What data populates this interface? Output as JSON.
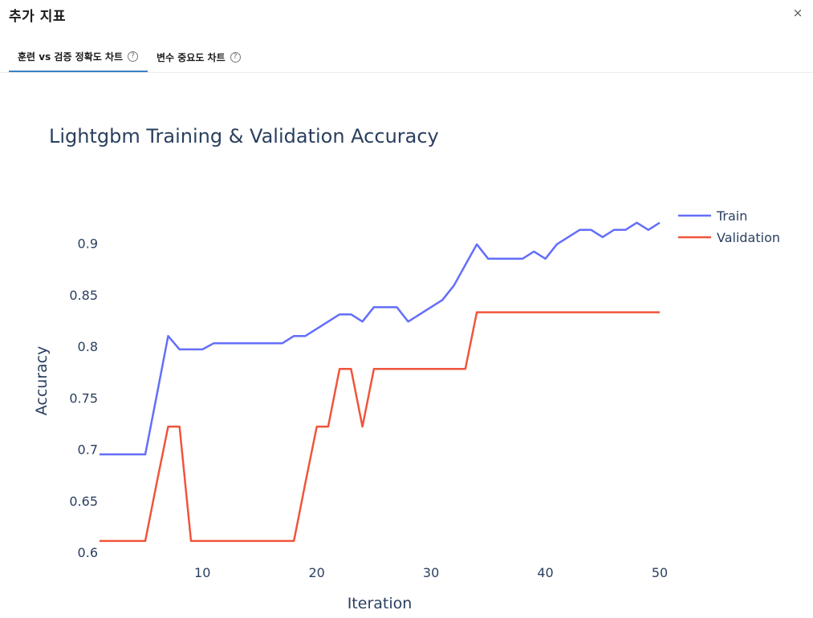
{
  "modal": {
    "title": "추가 지표",
    "close_icon": "×"
  },
  "tabs": [
    {
      "label": "훈련 vs 검증 정확도 차트",
      "active": true,
      "help_icon": "?"
    },
    {
      "label": "변수 중요도 차트",
      "active": false,
      "help_icon": "?"
    }
  ],
  "colors": {
    "train": "#636efa",
    "validation": "#ef553b",
    "text": "#2a3f5f",
    "tab_underline": "#3b82c4"
  },
  "chart_data": {
    "type": "line",
    "title": "Lightgbm Training & Validation Accuracy",
    "xlabel": "Iteration",
    "ylabel": "Accuracy",
    "xlim": [
      1,
      50
    ],
    "ylim": [
      0.6,
      0.93
    ],
    "xticks": [
      10,
      20,
      30,
      40,
      50
    ],
    "yticks": [
      0.6,
      0.65,
      0.7,
      0.75,
      0.8,
      0.85,
      0.9
    ],
    "ytick_labels": [
      "0.6",
      "0.65",
      "0.7",
      "0.75",
      "0.8",
      "0.85",
      "0.9"
    ],
    "legend_position": "top-right",
    "grid": false,
    "x": [
      1,
      2,
      3,
      4,
      5,
      6,
      7,
      8,
      9,
      10,
      11,
      12,
      13,
      14,
      15,
      16,
      17,
      18,
      19,
      20,
      21,
      22,
      23,
      24,
      25,
      26,
      27,
      28,
      29,
      30,
      31,
      32,
      33,
      34,
      35,
      36,
      37,
      38,
      39,
      40,
      41,
      42,
      43,
      44,
      45,
      46,
      47,
      48,
      49,
      50
    ],
    "series": [
      {
        "name": "Train",
        "values": [
          0.695,
          0.695,
          0.695,
          0.695,
          0.695,
          0.752,
          0.81,
          0.797,
          0.797,
          0.797,
          0.803,
          0.803,
          0.803,
          0.803,
          0.803,
          0.803,
          0.803,
          0.81,
          0.81,
          0.817,
          0.824,
          0.831,
          0.831,
          0.824,
          0.838,
          0.838,
          0.838,
          0.824,
          0.831,
          0.838,
          0.845,
          0.859,
          0.879,
          0.899,
          0.885,
          0.885,
          0.885,
          0.885,
          0.892,
          0.885,
          0.899,
          0.906,
          0.913,
          0.913,
          0.906,
          0.913,
          0.913,
          0.92,
          0.913,
          0.92
        ]
      },
      {
        "name": "Validation",
        "values": [
          0.611,
          0.611,
          0.611,
          0.611,
          0.611,
          0.667,
          0.722,
          0.722,
          0.611,
          0.611,
          0.611,
          0.611,
          0.611,
          0.611,
          0.611,
          0.611,
          0.611,
          0.611,
          0.667,
          0.722,
          0.722,
          0.778,
          0.778,
          0.722,
          0.778,
          0.778,
          0.778,
          0.778,
          0.778,
          0.778,
          0.778,
          0.778,
          0.778,
          0.833,
          0.833,
          0.833,
          0.833,
          0.833,
          0.833,
          0.833,
          0.833,
          0.833,
          0.833,
          0.833,
          0.833,
          0.833,
          0.833,
          0.833,
          0.833,
          0.833
        ]
      }
    ]
  }
}
